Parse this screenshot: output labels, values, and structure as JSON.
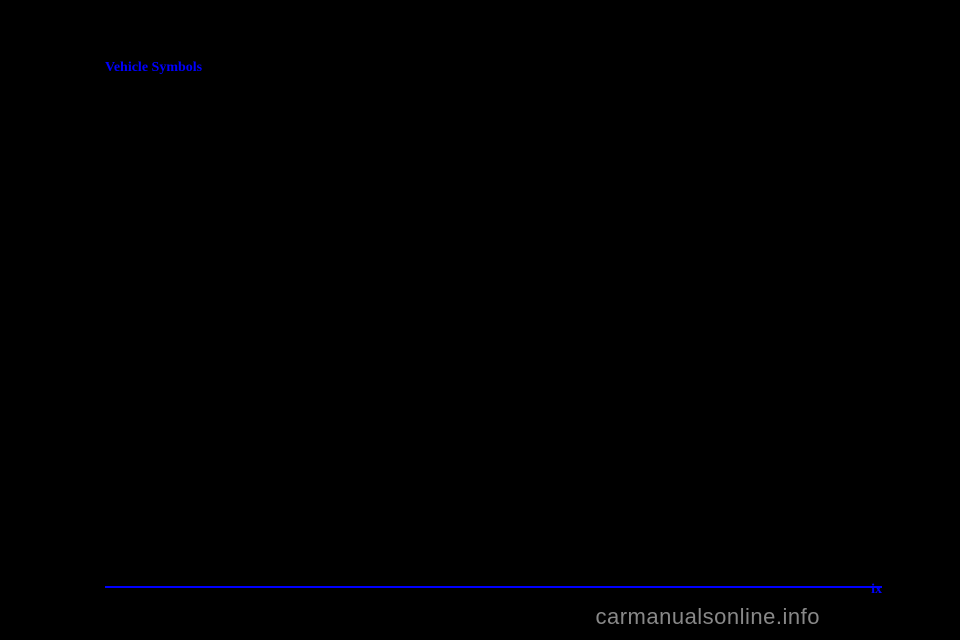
{
  "heading": {
    "text": "Vehicle Symbols",
    "color": "#0000ff",
    "fontsize": 14,
    "fontweight": "bold"
  },
  "divider": {
    "color": "#0000ff",
    "thickness": 2
  },
  "page_number": {
    "text": "ix",
    "color": "#0000ff",
    "fontsize": 14,
    "fontweight": "bold"
  },
  "watermark": {
    "text": "carmanualsonline.info",
    "color": "#888888",
    "fontsize": 22
  },
  "background_color": "#000000"
}
